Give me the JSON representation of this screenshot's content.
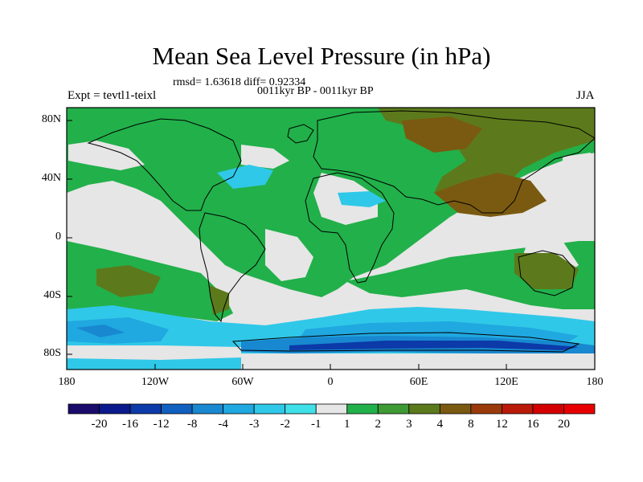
{
  "title": "Mean Sea Level Pressure (in hPa)",
  "stats": "rmsd= 1.63618 diff= 0.92334",
  "period": "0011kyr BP - 0011kyr BP",
  "experiment": "Expt = tevtl1-teixl",
  "season": "JJA",
  "lat_ticks": [
    "80N",
    "40N",
    "0",
    "40S",
    "80S"
  ],
  "lon_ticks": [
    "180",
    "120W",
    "60W",
    "0",
    "60E",
    "120E",
    "180"
  ],
  "colorbar": {
    "labels": [
      "-20",
      "-16",
      "-12",
      "-8",
      "-4",
      "-3",
      "-2",
      "-1",
      "1",
      "2",
      "3",
      "4",
      "8",
      "12",
      "16",
      "20"
    ],
    "colors": [
      "#1a0a6a",
      "#0a1a8c",
      "#0c3aa8",
      "#1060c0",
      "#1888d0",
      "#20a8e0",
      "#30c8e8",
      "#40e0e8",
      "#e6e6e6",
      "#22b04a",
      "#3e9a34",
      "#5c7a1c",
      "#7a5a10",
      "#9a3a0a",
      "#ba1a08",
      "#d40000",
      "#e80000"
    ]
  },
  "palette": {
    "land_line": "#000000",
    "neutral": "#e6e6e6",
    "green": "#22b04a",
    "darkgreen": "#3e9a34",
    "olive": "#5c7a1c",
    "brown": "#7a5a10",
    "cyan": "#30c8e8",
    "lightblue": "#20a8e0",
    "blue": "#1888d0",
    "navy": "#0c3aa8"
  }
}
